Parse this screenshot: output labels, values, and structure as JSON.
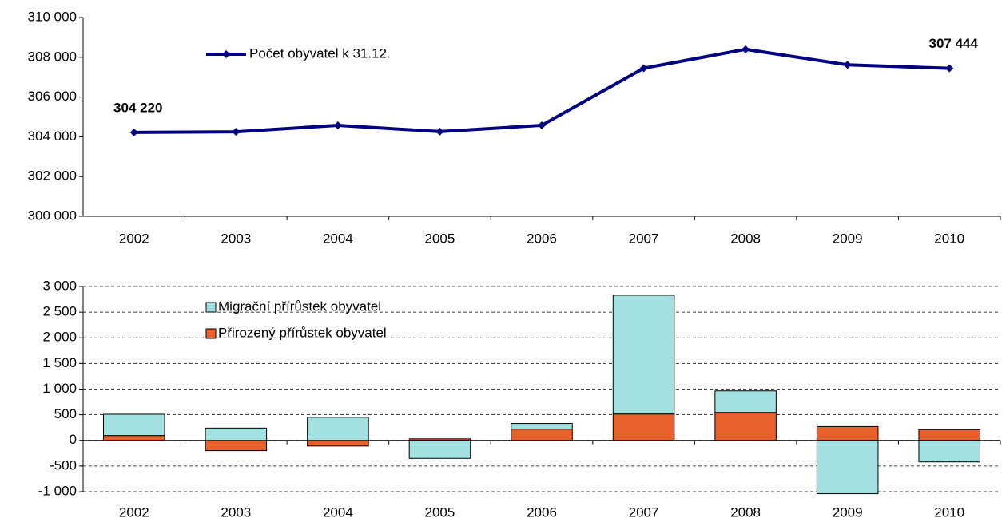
{
  "chart_data": [
    {
      "type": "line",
      "categories": [
        "2002",
        "2003",
        "2004",
        "2005",
        "2006",
        "2007",
        "2008",
        "2009",
        "2010"
      ],
      "series": [
        {
          "name": "Počet obyvatel k 31.12.",
          "color": "#000080",
          "values": [
            304220,
            304250,
            304580,
            304260,
            304580,
            307450,
            308400,
            307620,
            307444
          ],
          "value_labels": [
            "304 220",
            null,
            null,
            null,
            null,
            null,
            null,
            null,
            "307 444"
          ]
        }
      ],
      "ylim": [
        300000,
        310000
      ],
      "yticks": [
        {
          "value": 300000,
          "label": "300 000"
        },
        {
          "value": 302000,
          "label": "302 000"
        },
        {
          "value": 304000,
          "label": "304 000"
        },
        {
          "value": 306000,
          "label": "306 000"
        },
        {
          "value": 308000,
          "label": "308 000"
        },
        {
          "value": 310000,
          "label": "310 000"
        }
      ],
      "grid": false,
      "legend": "top-left"
    },
    {
      "type": "stacked-bar",
      "categories": [
        "2002",
        "2003",
        "2004",
        "2005",
        "2006",
        "2007",
        "2008",
        "2009",
        "2010"
      ],
      "series": [
        {
          "name": "Migrační přírůstek obyvatel",
          "color": "#a3e0e0",
          "values": [
            415,
            240,
            450,
            -350,
            110,
            2315,
            420,
            -1040,
            -420
          ]
        },
        {
          "name": "Přirozený přírůstek obyvatel",
          "color": "#e8602c",
          "values": [
            95,
            -200,
            -110,
            30,
            220,
            515,
            545,
            270,
            210
          ]
        }
      ],
      "ylim": [
        -1000,
        3000
      ],
      "yticks": [
        {
          "value": -1000,
          "label": "-1 000"
        },
        -500,
        0,
        500,
        {
          "value": 1000,
          "label": "1 000"
        },
        {
          "value": 1500,
          "label": "1 500"
        },
        {
          "value": 2000,
          "label": "2 000"
        },
        {
          "value": 2500,
          "label": "2 500"
        },
        {
          "value": 3000,
          "label": "3 000"
        }
      ],
      "grid": true,
      "legend": "top-left"
    }
  ]
}
